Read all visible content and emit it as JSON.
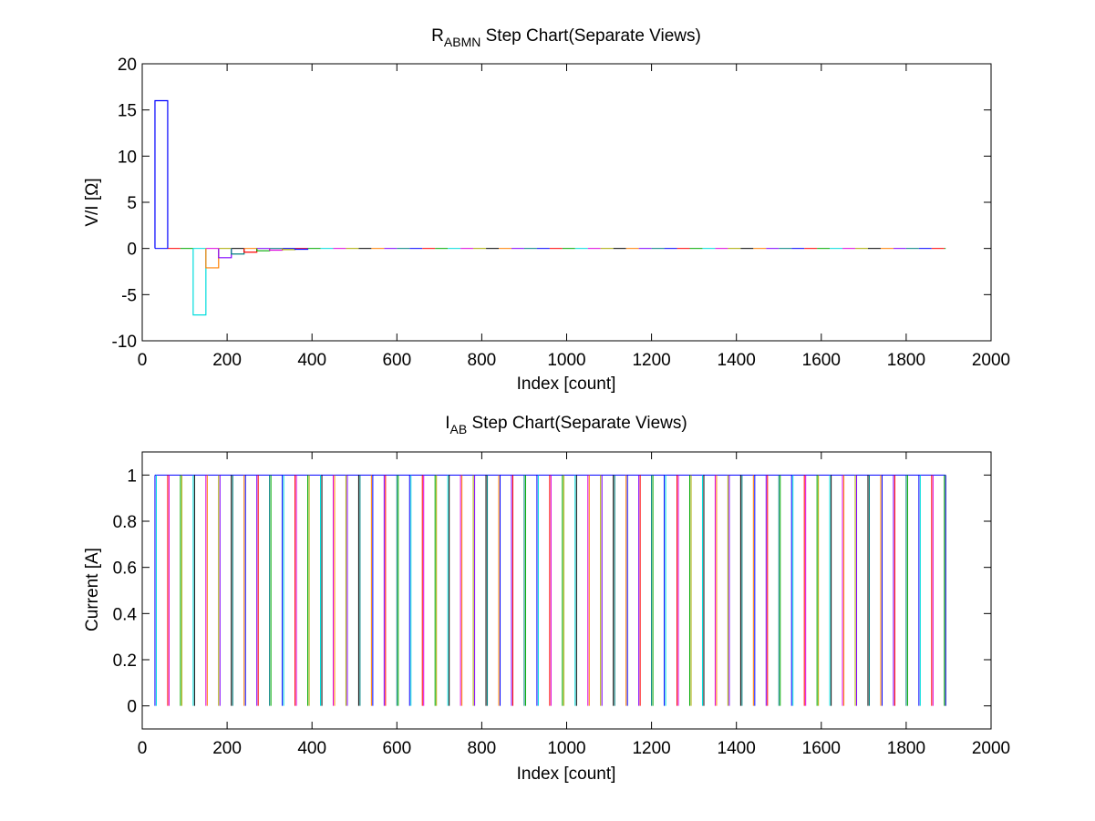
{
  "figure": {
    "background": "#ffffff"
  },
  "chart_data": [
    {
      "type": "line",
      "title_main": "R",
      "title_sub": "ABMN",
      "title_rest": " Step Chart(Separate Views)",
      "xlabel": "Index [count]",
      "ylabel": "V/I [Ω]",
      "xlim": [
        0,
        2000
      ],
      "ylim": [
        -10,
        20
      ],
      "xticks": [
        0,
        200,
        400,
        600,
        800,
        1000,
        1200,
        1400,
        1600,
        1800,
        2000
      ],
      "yticks": [
        -10,
        -5,
        0,
        5,
        10,
        15,
        20
      ],
      "grid": false,
      "legend": "none",
      "colors": [
        "#0000ff",
        "#ff0000",
        "#00aa00",
        "#00dddd",
        "#dd00dd",
        "#aaaa00",
        "#000000",
        "#ff8000",
        "#8000ff",
        "#008080"
      ],
      "segment_width": 30,
      "segment_x_start": 30,
      "segment_x_end": 1893,
      "segments": [
        {
          "x": [
            30,
            60
          ],
          "y": 16,
          "color": "#0000ff"
        },
        {
          "x": [
            120,
            150
          ],
          "y": -7.2,
          "color": "#00dddd"
        },
        {
          "x": [
            150,
            180
          ],
          "y": -2.1,
          "color": "#ff8000"
        },
        {
          "x": [
            180,
            210
          ],
          "y": -1.0,
          "color": "#8000ff"
        },
        {
          "x": [
            210,
            240
          ],
          "y": -0.6,
          "color": "#008080"
        },
        {
          "x": [
            240,
            270
          ],
          "y": -0.4,
          "color": "#ff0000"
        },
        {
          "x": [
            270,
            300
          ],
          "y": -0.25,
          "color": "#00aa00"
        },
        {
          "x": [
            300,
            330
          ],
          "y": -0.18,
          "color": "#dd00dd"
        },
        {
          "x": [
            330,
            360
          ],
          "y": -0.12,
          "color": "#aaaa00"
        },
        {
          "x": [
            360,
            390
          ],
          "y": -0.08,
          "color": "#0000ff"
        }
      ]
    },
    {
      "type": "line",
      "title_main": "I",
      "title_sub": "AB",
      "title_rest": " Step Chart(Separate Views)",
      "xlabel": "Index [count]",
      "ylabel": "Current [A]",
      "xlim": [
        0,
        2000
      ],
      "ylim": [
        -0.1,
        1.1
      ],
      "xticks": [
        0,
        200,
        400,
        600,
        800,
        1000,
        1200,
        1400,
        1600,
        1800,
        2000
      ],
      "yticks": [
        0,
        0.2,
        0.4,
        0.6,
        0.8,
        1
      ],
      "ytick_labels": [
        "0",
        "0.2",
        "0.4",
        "0.6",
        "0.8",
        "1"
      ],
      "grid": false,
      "legend": "none",
      "pulse_high": 1,
      "pulse_low": 0,
      "pulse_period": 30,
      "pulse_x_start": 30,
      "pulse_x_end": 1893
    }
  ]
}
